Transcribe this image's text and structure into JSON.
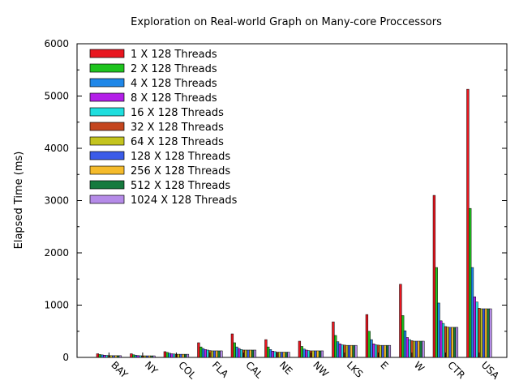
{
  "chart_data": {
    "type": "bar",
    "title": "Exploration on Real-world Graph on Many-core Proccessors",
    "ylabel": "Elapsed Time (ms)",
    "xlabel": "",
    "ylim": [
      0,
      6000
    ],
    "yticks": [
      0,
      1000,
      2000,
      3000,
      4000,
      5000,
      6000
    ],
    "grid": false,
    "legend_position": "top-left",
    "categories": [
      "BAY",
      "NY",
      "COL",
      "FLA",
      "CAL",
      "NE",
      "NW",
      "LKS",
      "E",
      "W",
      "CTR",
      "USA"
    ],
    "series": [
      {
        "name": "1 X 128 Threads",
        "color": "#e8161f",
        "values": [
          70,
          70,
          110,
          280,
          450,
          340,
          310,
          680,
          820,
          1400,
          3100,
          5130
        ]
      },
      {
        "name": "2 X 128 Threads",
        "color": "#1fc41f",
        "values": [
          55,
          50,
          95,
          200,
          280,
          200,
          210,
          420,
          500,
          800,
          1720,
          2850
        ]
      },
      {
        "name": "4 X 128 Threads",
        "color": "#1f87e8",
        "values": [
          48,
          40,
          80,
          170,
          200,
          150,
          160,
          300,
          340,
          510,
          1040,
          1720
        ]
      },
      {
        "name": "8 X 128 Threads",
        "color": "#b31fe8",
        "values": [
          42,
          35,
          70,
          150,
          170,
          120,
          140,
          260,
          260,
          380,
          700,
          1160
        ]
      },
      {
        "name": "16 X 128 Threads",
        "color": "#1fdede",
        "values": [
          38,
          32,
          65,
          140,
          150,
          110,
          130,
          240,
          240,
          340,
          650,
          1060
        ]
      },
      {
        "name": "32 X 128 Threads",
        "color": "#c4461f",
        "values": [
          35,
          30,
          60,
          130,
          140,
          100,
          125,
          235,
          235,
          320,
          590,
          940
        ]
      },
      {
        "name": "64 X 128 Threads",
        "color": "#c4c41f",
        "values": [
          33,
          30,
          60,
          125,
          140,
          100,
          125,
          230,
          230,
          310,
          580,
          930
        ]
      },
      {
        "name": "128 X 128 Threads",
        "color": "#3b5be8",
        "values": [
          33,
          30,
          60,
          125,
          140,
          100,
          125,
          230,
          230,
          310,
          575,
          930
        ]
      },
      {
        "name": "256 X 128 Threads",
        "color": "#f5bb2b",
        "values": [
          33,
          30,
          60,
          125,
          140,
          100,
          125,
          230,
          230,
          310,
          575,
          930
        ]
      },
      {
        "name": "512 X 128 Threads",
        "color": "#167a3e",
        "values": [
          33,
          30,
          60,
          125,
          140,
          100,
          125,
          230,
          230,
          310,
          575,
          930
        ]
      },
      {
        "name": "1024 X 128 Threads",
        "color": "#b58be8",
        "values": [
          33,
          30,
          60,
          125,
          140,
          100,
          125,
          230,
          230,
          310,
          575,
          930
        ]
      }
    ]
  }
}
